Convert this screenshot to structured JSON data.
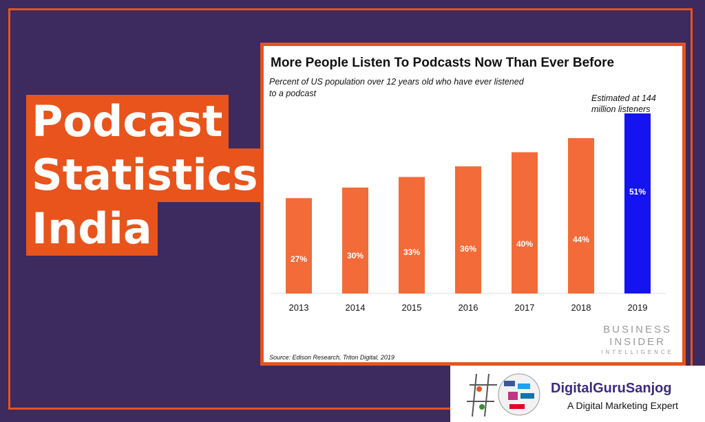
{
  "headline": {
    "lines": [
      "Podcast",
      "Statistics",
      "India"
    ]
  },
  "chart_data": {
    "type": "bar",
    "title": "More People Listen To Podcasts Now Than Ever Before",
    "subtitle": "Percent of US population over 12 years old who have ever listened to a podcast",
    "categories": [
      "2013",
      "2014",
      "2015",
      "2016",
      "2017",
      "2018",
      "2019"
    ],
    "values": [
      27,
      30,
      33,
      36,
      40,
      44,
      51
    ],
    "data_labels": [
      "27%",
      "30%",
      "33%",
      "36%",
      "40%",
      "44%",
      "51%"
    ],
    "ylim": [
      0,
      51
    ],
    "xlabel": "",
    "ylabel": "",
    "grid": false,
    "annotation": "Estimated at 144 million listeners",
    "source": "Source: Edison Research, Triton Digital, 2019",
    "colors": {
      "default": "#f26b38",
      "highlight": "#1414f0",
      "label": "#ffffff",
      "axis": "#dddddd"
    },
    "highlight_index": 6
  },
  "publisher_logo": {
    "line1": "BUSINESS",
    "line2": "INSIDER",
    "line3": "INTELLIGENCE"
  },
  "brand": {
    "name": "DigitalGuruSanjog",
    "tagline": "A Digital Marketing Expert"
  },
  "colors": {
    "background": "#3d2a5e",
    "accent": "#e8541c",
    "brand_text": "#3c2a82"
  }
}
